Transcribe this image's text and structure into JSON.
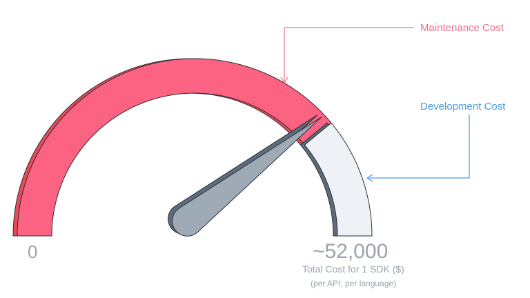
{
  "gauge": {
    "min_label": "0",
    "max_label": "~52,000",
    "caption": "Total Cost for 1 SDK ($)",
    "subcaption": "(per API, per language)",
    "maintenance_fraction": 0.78,
    "needle_fraction": 0.79
  },
  "annotations": {
    "maintenance": {
      "label": "Maintenance Cost",
      "color": "#f0708a"
    },
    "development": {
      "label": "Development Cost",
      "color": "#4a9be3"
    }
  },
  "colors": {
    "maintenance_fill": "#fc6282",
    "maintenance_shadow": "#e84a57",
    "development_fill": "#eef1f5",
    "development_shadow": "#5d6c7c",
    "needle_fill": "#9eabb6",
    "needle_shadow": "#5d6c7c",
    "outline": "#2b2f33"
  }
}
